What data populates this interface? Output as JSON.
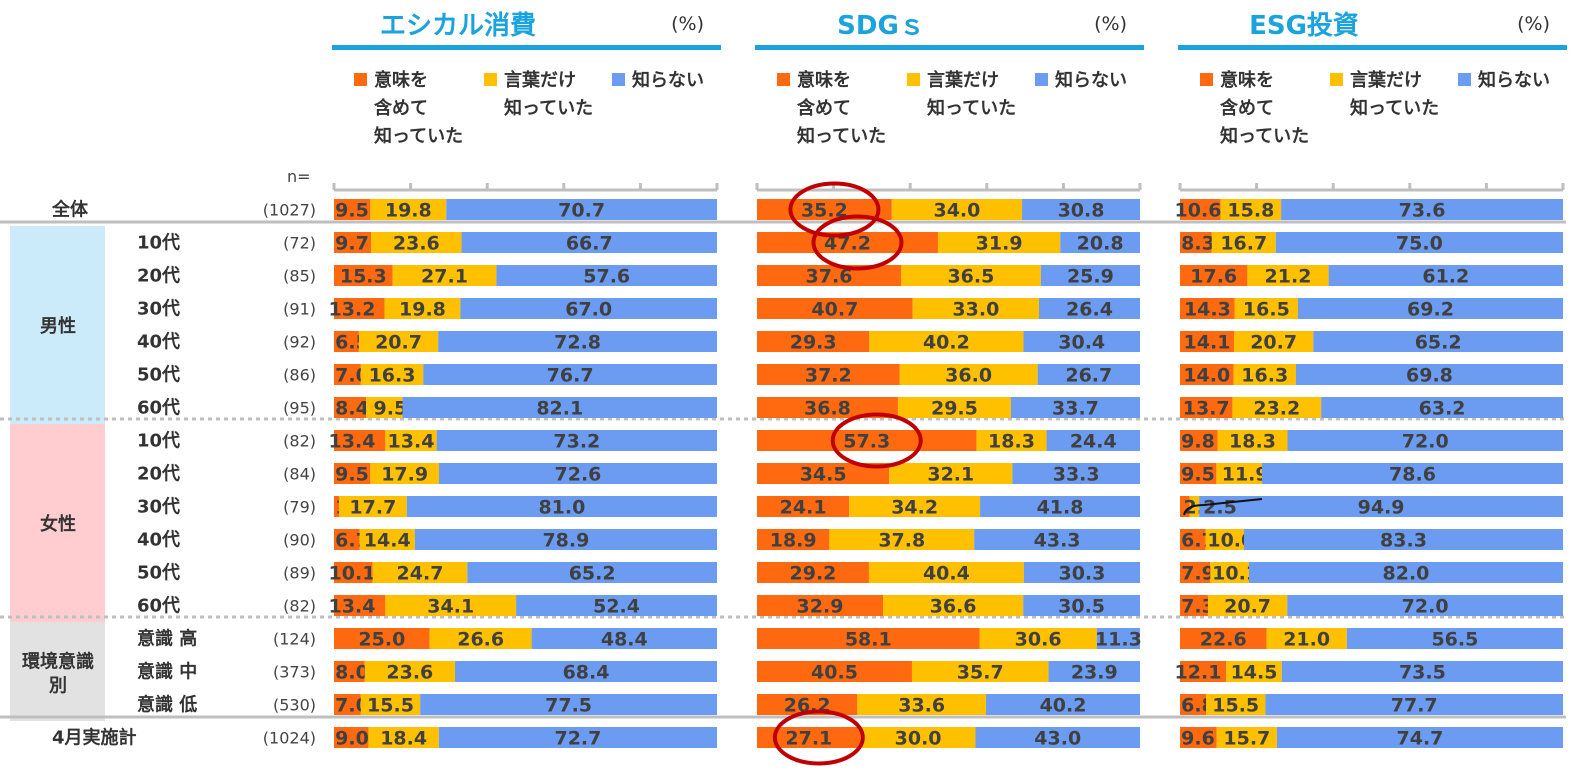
{
  "chart_data": {
    "type": "bar",
    "orientation": "horizontal",
    "stacked": true,
    "unit_label": "(%)",
    "n_header": "n=",
    "rows": [
      {
        "label": "全体",
        "n": "(1027)",
        "group": ""
      },
      {
        "label": "10代",
        "n": "(72)",
        "group": "男性"
      },
      {
        "label": "20代",
        "n": "(85)",
        "group": "男性"
      },
      {
        "label": "30代",
        "n": "(91)",
        "group": "男性"
      },
      {
        "label": "40代",
        "n": "(92)",
        "group": "男性"
      },
      {
        "label": "50代",
        "n": "(86)",
        "group": "男性"
      },
      {
        "label": "60代",
        "n": "(95)",
        "group": "男性"
      },
      {
        "label": "10代",
        "n": "(82)",
        "group": "女性"
      },
      {
        "label": "20代",
        "n": "(84)",
        "group": "女性"
      },
      {
        "label": "30代",
        "n": "(79)",
        "group": "女性"
      },
      {
        "label": "40代",
        "n": "(90)",
        "group": "女性"
      },
      {
        "label": "50代",
        "n": "(89)",
        "group": "女性"
      },
      {
        "label": "60代",
        "n": "(82)",
        "group": "女性"
      },
      {
        "label": "意識 高",
        "n": "(124)",
        "group": "環境意識別"
      },
      {
        "label": "意識 中",
        "n": "(373)",
        "group": "環境意識別"
      },
      {
        "label": "意識 低",
        "n": "(530)",
        "group": "環境意識別"
      },
      {
        "label": "4月実施計",
        "n": "(1024)",
        "group": ""
      }
    ],
    "groups": [
      {
        "label": "男性",
        "color": "#CCEBFA"
      },
      {
        "label": "女性",
        "color": "#FFCCD0"
      },
      {
        "label": "環境意識別",
        "color": "#E2E2E2"
      }
    ],
    "legend": [
      {
        "name": "意味を含めて知っていた",
        "lines": [
          "意味を",
          "含めて",
          "知っていた"
        ],
        "color": "#FF6A10"
      },
      {
        "name": "言葉だけ知っていた",
        "lines": [
          "言葉だけ",
          "知っていた"
        ],
        "color": "#FFC000"
      },
      {
        "name": "知らない",
        "lines": [
          "知らない"
        ],
        "color": "#6B9CF2"
      }
    ],
    "xlim": [
      0,
      100
    ],
    "panels": [
      {
        "title": "エシカル消費",
        "values": [
          [
            9.5,
            19.8,
            70.7
          ],
          [
            9.7,
            23.6,
            66.7
          ],
          [
            15.3,
            27.1,
            57.6
          ],
          [
            13.2,
            19.8,
            67.0
          ],
          [
            6.5,
            20.7,
            72.8
          ],
          [
            7.0,
            16.3,
            76.7
          ],
          [
            8.4,
            9.5,
            82.1
          ],
          [
            13.4,
            13.4,
            73.2
          ],
          [
            9.5,
            17.9,
            72.6
          ],
          [
            1.3,
            17.7,
            81.0
          ],
          [
            6.7,
            14.4,
            78.9
          ],
          [
            10.1,
            24.7,
            65.2
          ],
          [
            13.4,
            34.1,
            52.4
          ],
          [
            25.0,
            26.6,
            48.4
          ],
          [
            8.0,
            23.6,
            68.4
          ],
          [
            7.0,
            15.5,
            77.5
          ],
          [
            9.0,
            18.4,
            72.7
          ]
        ],
        "labels": [
          [
            "9.5",
            "19.8",
            "70.7"
          ],
          [
            "9.7",
            "23.6",
            "66.7"
          ],
          [
            "15.3",
            "27.1",
            "57.6"
          ],
          [
            "13.2",
            "19.8",
            "67.0"
          ],
          [
            "6.5",
            "20.7",
            "72.8"
          ],
          [
            "7.0",
            "16.3",
            "76.7"
          ],
          [
            "8.4",
            "9.5",
            "82.1"
          ],
          [
            "13.4",
            "13.4",
            "73.2"
          ],
          [
            "9.5",
            "17.9",
            "72.6"
          ],
          [
            "1.3",
            "17.7",
            "81.0"
          ],
          [
            "6.7",
            "14.4",
            "78.9"
          ],
          [
            "10.1",
            "24.7",
            "65.2"
          ],
          [
            "13.4",
            "34.1",
            "52.4"
          ],
          [
            "25.0",
            "26.6",
            "48.4"
          ],
          [
            "8.0",
            "23.6",
            "68.4"
          ],
          [
            "7.0",
            "15.5",
            "77.5"
          ],
          [
            "9.0",
            "18.4",
            "72.7"
          ]
        ],
        "circled": []
      },
      {
        "title": "SDGｓ",
        "values": [
          [
            35.2,
            34.0,
            30.8
          ],
          [
            47.2,
            31.9,
            20.8
          ],
          [
            37.6,
            36.5,
            25.9
          ],
          [
            40.7,
            33.0,
            26.4
          ],
          [
            29.3,
            40.2,
            30.4
          ],
          [
            37.2,
            36.0,
            26.7
          ],
          [
            36.8,
            29.5,
            33.7
          ],
          [
            57.3,
            18.3,
            24.4
          ],
          [
            34.5,
            32.1,
            33.3
          ],
          [
            24.1,
            34.2,
            41.8
          ],
          [
            18.9,
            37.8,
            43.3
          ],
          [
            29.2,
            40.4,
            30.3
          ],
          [
            32.9,
            36.6,
            30.5
          ],
          [
            58.1,
            30.6,
            11.3
          ],
          [
            40.5,
            35.7,
            23.9
          ],
          [
            26.2,
            33.6,
            40.2
          ],
          [
            27.1,
            30.0,
            43.0
          ]
        ],
        "labels": [
          [
            "35.2",
            "34.0",
            "30.8"
          ],
          [
            "47.2",
            "31.9",
            "20.8"
          ],
          [
            "37.6",
            "36.5",
            "25.9"
          ],
          [
            "40.7",
            "33.0",
            "26.4"
          ],
          [
            "29.3",
            "40.2",
            "30.4"
          ],
          [
            "37.2",
            "36.0",
            "26.7"
          ],
          [
            "36.8",
            "29.5",
            "33.7"
          ],
          [
            "57.3",
            "18.3",
            "24.4"
          ],
          [
            "34.5",
            "32.1",
            "33.3"
          ],
          [
            "24.1",
            "34.2",
            "41.8"
          ],
          [
            "18.9",
            "37.8",
            "43.3"
          ],
          [
            "29.2",
            "40.4",
            "30.3"
          ],
          [
            "32.9",
            "36.6",
            "30.5"
          ],
          [
            "58.1",
            "30.6",
            "11.3"
          ],
          [
            "40.5",
            "35.7",
            "23.9"
          ],
          [
            "26.2",
            "33.6",
            "40.2"
          ],
          [
            "27.1",
            "30.0",
            "43.0"
          ]
        ],
        "circled": [
          0,
          1,
          7,
          16
        ]
      },
      {
        "title": "ESG投資",
        "values": [
          [
            10.6,
            15.8,
            73.6
          ],
          [
            8.3,
            16.7,
            75.0
          ],
          [
            17.6,
            21.2,
            61.2
          ],
          [
            14.3,
            16.5,
            69.2
          ],
          [
            14.1,
            20.7,
            65.2
          ],
          [
            14.0,
            16.3,
            69.8
          ],
          [
            13.7,
            23.2,
            63.2
          ],
          [
            9.8,
            18.3,
            72.0
          ],
          [
            9.5,
            11.9,
            78.6
          ],
          [
            2.5,
            2.5,
            94.9
          ],
          [
            6.7,
            10.0,
            83.3
          ],
          [
            7.9,
            10.1,
            82.0
          ],
          [
            7.3,
            20.7,
            72.0
          ],
          [
            22.6,
            21.0,
            56.5
          ],
          [
            12.1,
            14.5,
            73.5
          ],
          [
            6.8,
            15.5,
            77.7
          ],
          [
            9.6,
            15.7,
            74.7
          ]
        ],
        "labels": [
          [
            "10.6",
            "15.8",
            "73.6"
          ],
          [
            "8.3",
            "16.7",
            "75.0"
          ],
          [
            "17.6",
            "21.2",
            "61.2"
          ],
          [
            "14.3",
            "16.5",
            "69.2"
          ],
          [
            "14.1",
            "20.7",
            "65.2"
          ],
          [
            "14.0",
            "16.3",
            "69.8"
          ],
          [
            "13.7",
            "23.2",
            "63.2"
          ],
          [
            "9.8",
            "18.3",
            "72.0"
          ],
          [
            "9.5",
            "11.9",
            "78.6"
          ],
          [
            "",
            "2.5",
            "94.9"
          ],
          [
            "6.7",
            "10.0",
            "83.3"
          ],
          [
            "7.9",
            "10.1",
            "82.0"
          ],
          [
            "7.3",
            "20.7",
            "72.0"
          ],
          [
            "22.6",
            "21.0",
            "56.5"
          ],
          [
            "12.1",
            "14.5",
            "73.5"
          ],
          [
            "6.8",
            "15.5",
            "77.7"
          ],
          [
            "9.6",
            "15.7",
            "74.7"
          ]
        ],
        "circled": [],
        "struck": [
          {
            "row": 9,
            "text": "2.5"
          }
        ]
      }
    ]
  }
}
